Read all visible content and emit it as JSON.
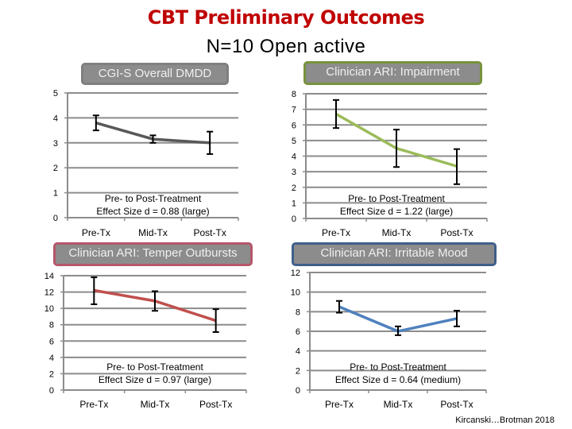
{
  "header": {
    "title": "CBT Preliminary Outcomes",
    "subtitle": "N=10 Open active"
  },
  "credit": "Kircanski…Brotman 2018",
  "chart_data": [
    {
      "type": "line",
      "title": "CGI-S Overall DMDD",
      "categories": [
        "Pre-Tx",
        "Mid-Tx",
        "Post-Tx"
      ],
      "values": [
        3.8,
        3.15,
        3.0
      ],
      "error_low": [
        3.5,
        3.0,
        2.55
      ],
      "error_high": [
        4.1,
        3.3,
        3.45
      ],
      "ylim": [
        0,
        5
      ],
      "yticks": [
        0,
        1,
        2,
        3,
        4,
        5
      ],
      "annotation": [
        "Pre- to Post-Treatment",
        "Effect Size d = 0.88 (large)"
      ],
      "line_color": "#595959",
      "title_border": "#7f7f7f",
      "grid": true
    },
    {
      "type": "line",
      "title": "Clinician ARI: Impairment",
      "categories": [
        "Pre-Tx",
        "Mid-Tx",
        "Post-Tx"
      ],
      "values": [
        6.7,
        4.5,
        3.35
      ],
      "error_low": [
        5.8,
        3.3,
        2.2
      ],
      "error_high": [
        7.6,
        5.7,
        4.45
      ],
      "ylim": [
        0,
        8
      ],
      "yticks": [
        0,
        1,
        2,
        3,
        4,
        5,
        6,
        7,
        8
      ],
      "annotation": [
        "Pre- to Post-Treatment",
        "Effect Size d = 1.22 (large)"
      ],
      "line_color": "#9bbb59",
      "title_border": "#77933c",
      "grid": true
    },
    {
      "type": "line",
      "title": "Clinician ARI: Temper Outbursts",
      "categories": [
        "Pre-Tx",
        "Mid-Tx",
        "Post-Tx"
      ],
      "values": [
        12.2,
        10.9,
        8.5
      ],
      "error_low": [
        10.5,
        9.7,
        7.1
      ],
      "error_high": [
        13.8,
        12.1,
        9.9
      ],
      "ylim": [
        0,
        14
      ],
      "yticks": [
        0,
        2,
        4,
        6,
        8,
        10,
        12,
        14
      ],
      "annotation": [
        "Pre- to Post-Treatment",
        "Effect Size d = 0.97 (large)"
      ],
      "line_color": "#c0504d",
      "title_border": "#b5566b",
      "grid": true
    },
    {
      "type": "line",
      "title": "Clinician ARI: Irritable Mood",
      "categories": [
        "Pre-Tx",
        "Mid-Tx",
        "Post-Tx"
      ],
      "values": [
        8.5,
        6.0,
        7.3
      ],
      "error_low": [
        7.9,
        5.6,
        6.5
      ],
      "error_high": [
        9.1,
        6.5,
        8.1
      ],
      "ylim": [
        0,
        12
      ],
      "yticks": [
        0,
        2,
        4,
        6,
        8,
        10,
        12
      ],
      "annotation": [
        "Pre- to Post-Treatment",
        "Effect Size d = 0.64 (medium)"
      ],
      "line_color": "#4f81bd",
      "title_border": "#3f5f8a",
      "grid": true
    }
  ]
}
